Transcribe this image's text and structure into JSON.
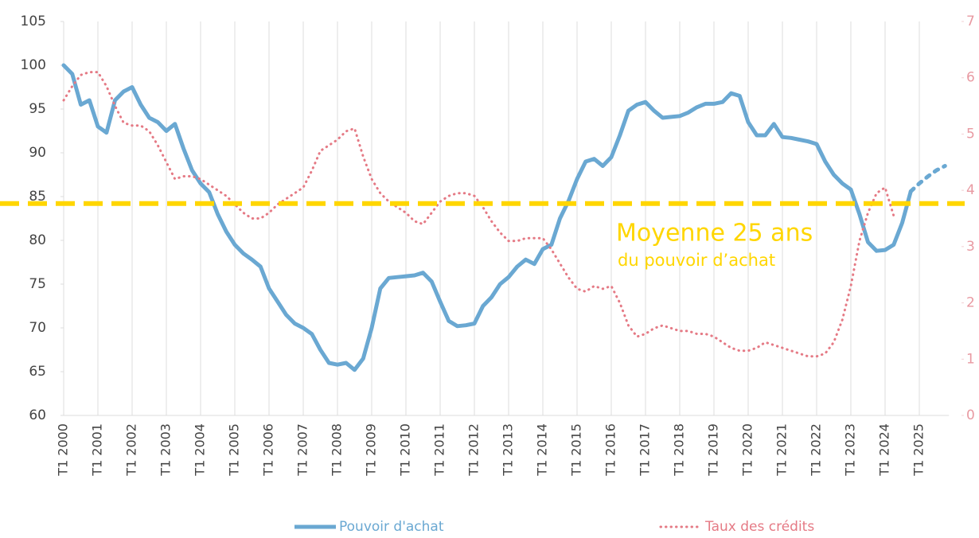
{
  "chart_data": {
    "type": "line",
    "categories": [
      "T1 2000",
      null,
      null,
      null,
      "T1 2001",
      null,
      null,
      null,
      "T1 2002",
      null,
      null,
      null,
      "T1 2003",
      null,
      null,
      null,
      "T1 2004",
      null,
      null,
      null,
      "T1 2005",
      null,
      null,
      null,
      "T1 2006",
      null,
      null,
      null,
      "T1 2007",
      null,
      null,
      null,
      "T1 2008",
      null,
      null,
      null,
      "T1 2009",
      null,
      null,
      null,
      "T1 2010",
      null,
      null,
      null,
      "T1 2011",
      null,
      null,
      null,
      "T1 2012",
      null,
      null,
      null,
      "T1 2013",
      null,
      null,
      null,
      "T1 2014",
      null,
      null,
      null,
      "T1 2015",
      null,
      null,
      null,
      "T1 2016",
      null,
      null,
      null,
      "T1 2017",
      null,
      null,
      null,
      "T1 2018",
      null,
      null,
      null,
      "T1 2019",
      null,
      null,
      null,
      "T1 2020",
      null,
      null,
      null,
      "T1 2021",
      null,
      null,
      null,
      "T1 2022",
      null,
      null,
      null,
      "T1 2023",
      null,
      null,
      null,
      "T1 2024",
      null,
      null,
      null,
      "T1 2025",
      null,
      null,
      null
    ],
    "series": [
      {
        "name": "Pouvoir d'achat",
        "color": "#6aa8d2",
        "axis": "y",
        "style": "solid",
        "dashed_from": 99,
        "values": [
          100,
          99,
          95.5,
          96,
          93,
          92.3,
          96,
          97,
          97.5,
          95.5,
          94,
          93.5,
          92.5,
          93.3,
          90.5,
          88,
          86.5,
          85.5,
          83,
          81,
          79.5,
          78.5,
          77.8,
          77,
          74.5,
          73,
          71.5,
          70.5,
          70,
          69.3,
          67.5,
          66,
          65.8,
          66,
          65.2,
          66.5,
          70,
          74.5,
          75.7,
          75.8,
          75.9,
          76,
          76.3,
          75.3,
          73,
          70.8,
          70.2,
          70.3,
          70.5,
          72.5,
          73.5,
          75,
          75.8,
          77,
          77.8,
          77.3,
          79,
          79.5,
          82.5,
          84.5,
          87,
          89,
          89.3,
          88.5,
          89.5,
          92,
          94.8,
          95.5,
          95.8,
          94.8,
          94,
          94.1,
          94.2,
          94.6,
          95.2,
          95.6,
          95.6,
          95.8,
          96.8,
          96.5,
          93.5,
          92,
          92,
          93.3,
          91.8,
          91.7,
          91.5,
          91.3,
          91,
          89,
          87.5,
          86.5,
          85.8,
          83,
          79.8,
          78.8,
          78.9,
          79.5,
          82,
          85.6,
          86.5,
          87.3,
          88,
          88.5
        ]
      },
      {
        "name": "Taux des crédits",
        "color": "#e57a85",
        "axis": "y2",
        "style": "dotted",
        "values": [
          5.6,
          5.85,
          6.05,
          6.1,
          6.1,
          5.85,
          5.5,
          5.2,
          5.15,
          5.15,
          5.05,
          4.8,
          4.5,
          4.2,
          4.25,
          4.25,
          4.2,
          4.1,
          4.0,
          3.9,
          3.75,
          3.6,
          3.5,
          3.5,
          3.6,
          3.75,
          3.85,
          3.95,
          4.05,
          4.35,
          4.7,
          4.8,
          4.9,
          5.05,
          5.1,
          4.6,
          4.2,
          3.95,
          3.8,
          3.7,
          3.6,
          3.45,
          3.4,
          3.6,
          3.8,
          3.9,
          3.95,
          3.95,
          3.9,
          3.7,
          3.45,
          3.25,
          3.1,
          3.1,
          3.15,
          3.15,
          3.15,
          2.95,
          2.7,
          2.45,
          2.25,
          2.2,
          2.3,
          2.25,
          2.3,
          2.0,
          1.6,
          1.4,
          1.45,
          1.55,
          1.6,
          1.55,
          1.5,
          1.5,
          1.45,
          1.45,
          1.4,
          1.3,
          1.2,
          1.15,
          1.15,
          1.2,
          1.3,
          1.25,
          1.2,
          1.15,
          1.1,
          1.05,
          1.05,
          1.1,
          1.3,
          1.7,
          2.3,
          3.1,
          3.6,
          3.95,
          4.05,
          3.55,
          null,
          null,
          null,
          null,
          null,
          null
        ]
      }
    ],
    "ylim": [
      60,
      105
    ],
    "yticks": [
      60,
      65,
      70,
      75,
      80,
      85,
      90,
      95,
      100,
      105
    ],
    "y2lim": [
      0,
      7
    ],
    "y2ticks": [
      0,
      1,
      2,
      3,
      4,
      5,
      6,
      7
    ],
    "grid": "vertical",
    "reference_line": {
      "value": 84.2,
      "color": "#ffd600",
      "label": "Moyenne 25 ans",
      "sublabel": "du pouvoir d’achat"
    },
    "legend": "bottom"
  }
}
